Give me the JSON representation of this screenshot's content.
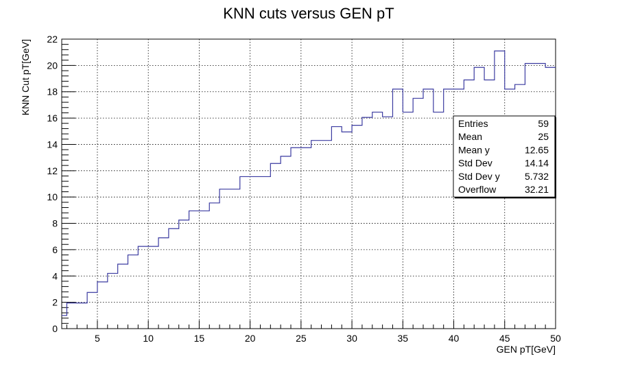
{
  "chart_data": {
    "type": "step",
    "title": "KNN cuts versus GEN pT",
    "xlabel": "GEN pT[GeV]",
    "ylabel": "KNN Cut pT[GeV]",
    "xlim": [
      1.5,
      50
    ],
    "ylim": [
      0,
      22
    ],
    "xticks": [
      5,
      10,
      15,
      20,
      25,
      30,
      35,
      40,
      45,
      50
    ],
    "yticks": [
      0,
      2,
      4,
      6,
      8,
      10,
      12,
      14,
      16,
      18,
      20,
      22
    ],
    "grid": true,
    "line_color": "#3a3aa0",
    "bin_edges": [
      1.5,
      2,
      3,
      4,
      5,
      6,
      7,
      8,
      9,
      10,
      11,
      12,
      13,
      14,
      15,
      16,
      17,
      18,
      19,
      20,
      21,
      22,
      23,
      24,
      25,
      26,
      27,
      28,
      29,
      30,
      31,
      32,
      33,
      34,
      35,
      36,
      37,
      38,
      39,
      40,
      41,
      42,
      43,
      44,
      45,
      46,
      47,
      48,
      49,
      50
    ],
    "values": [
      1.0,
      1.95,
      1.95,
      2.75,
      3.55,
      4.2,
      4.9,
      5.6,
      6.25,
      6.25,
      6.9,
      7.6,
      8.25,
      8.95,
      8.95,
      9.55,
      10.6,
      10.6,
      11.55,
      11.55,
      11.55,
      12.55,
      13.1,
      13.75,
      13.75,
      14.3,
      14.3,
      15.35,
      14.95,
      15.45,
      16.05,
      16.45,
      16.1,
      18.2,
      16.45,
      17.5,
      18.2,
      16.45,
      18.2,
      18.2,
      18.9,
      19.85,
      18.9,
      21.1,
      18.2,
      18.55,
      20.15,
      20.15,
      19.85
    ],
    "stats": [
      {
        "label": "Entries",
        "value": "59"
      },
      {
        "label": "Mean",
        "value": "25"
      },
      {
        "label": "Mean y",
        "value": "12.65"
      },
      {
        "label": "Std Dev",
        "value": "14.14"
      },
      {
        "label": "Std Dev y",
        "value": "5.732"
      },
      {
        "label": "Overflow",
        "value": "32.21"
      }
    ]
  }
}
